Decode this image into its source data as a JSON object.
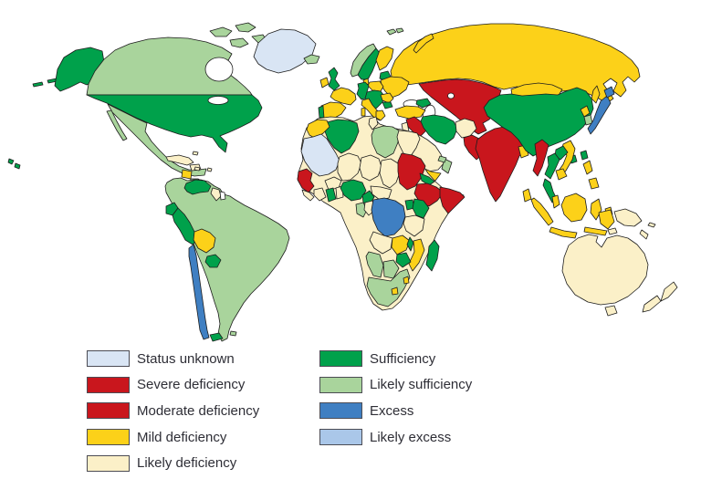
{
  "legend": {
    "columns": [
      {
        "items": [
          {
            "label": "Status unknown",
            "status": "status_unknown"
          },
          {
            "label": "Severe deficiency",
            "status": "severe_deficiency"
          },
          {
            "label": "Moderate deficiency",
            "status": "moderate_deficiency"
          },
          {
            "label": "Mild deficiency",
            "status": "mild_deficiency"
          },
          {
            "label": "Likely deficiency",
            "status": "likely_deficiency"
          }
        ]
      },
      {
        "items": [
          {
            "label": "Sufficiency",
            "status": "sufficiency"
          },
          {
            "label": "Likely sufficiency",
            "status": "likely_sufficiency"
          },
          {
            "label": "Excess",
            "status": "excess"
          },
          {
            "label": "Likely excess",
            "status": "likely_excess"
          }
        ]
      }
    ]
  },
  "status_colors": {
    "status_unknown": "#d9e5f4",
    "severe_deficiency": "#c9161d",
    "moderate_deficiency": "#c9161d",
    "mild_deficiency": "#fcd119",
    "likely_deficiency": "#fbf0c8",
    "sufficiency": "#00a14b",
    "likely_sufficiency": "#a9d49c",
    "excess": "#3f7fc2",
    "likely_excess": "#aac7e9",
    "no_data": "#ffffff"
  },
  "map": {
    "water_color": "#ffffff",
    "outline_color": "#1d1d1d",
    "regions": {
      "hawaii": "sufficiency",
      "aleutians": "sufficiency",
      "alaska": "sufficiency",
      "canada": "likely_sufficiency",
      "arctic_islands": "likely_sufficiency",
      "greenland": "status_unknown",
      "iceland": "likely_sufficiency",
      "usa": "sufficiency",
      "mexico": "likely_sufficiency",
      "guatemala": "mild_deficiency",
      "central_america": "likely_sufficiency",
      "cuba": "likely_deficiency",
      "hispaniola": "likely_deficiency",
      "bahamas": "likely_deficiency",
      "antilles": "likely_deficiency",
      "trinidad": "likely_deficiency",
      "south_america_base": "likely_sufficiency",
      "venezuela": "sufficiency",
      "guyana": "likely_deficiency",
      "suriname": "no_data",
      "ecuador": "sufficiency",
      "peru": "sufficiency",
      "bolivia": "mild_deficiency",
      "paraguay": "sufficiency",
      "chile": "excess",
      "tierra_del_fuego": "sufficiency",
      "falkland": "likely_sufficiency",
      "ireland": "mild_deficiency",
      "uk": "sufficiency",
      "norway": "likely_sufficiency",
      "sweden": "sufficiency",
      "finland": "mild_deficiency",
      "denmark": "mild_deficiency",
      "baltics": "sufficiency",
      "poland": "mild_deficiency",
      "germany": "sufficiency",
      "france": "mild_deficiency",
      "spain": "mild_deficiency",
      "portugal": "sufficiency",
      "italy": "mild_deficiency",
      "central_europe": "sufficiency",
      "greece": "mild_deficiency",
      "romania": "mild_deficiency",
      "bulgaria": "sufficiency",
      "east_europe": "mild_deficiency",
      "russia": "mild_deficiency",
      "svalbard": "likely_sufficiency",
      "caucasus": "sufficiency",
      "central_asia": "severe_deficiency",
      "turkey": "mild_deficiency",
      "syria_iraq": "severe_deficiency",
      "levant": "likely_deficiency",
      "iran": "sufficiency",
      "afghanistan": "likely_deficiency",
      "pakistan": "severe_deficiency",
      "india": "severe_deficiency",
      "bangladesh": "mild_deficiency",
      "sri_lanka": "mild_deficiency",
      "saudi_arabia": "likely_deficiency",
      "yemen": "mild_deficiency",
      "oman": "likely_sufficiency",
      "uae": "likely_sufficiency",
      "china": "sufficiency",
      "mongolia": "mild_deficiency",
      "north_korea": "mild_deficiency",
      "south_korea": "likely_sufficiency",
      "japan": "excess",
      "taiwan": "sufficiency",
      "hainan": "sufficiency",
      "myanmar": "severe_deficiency",
      "thailand": "sufficiency",
      "laos": "sufficiency",
      "vietnam": "mild_deficiency",
      "cambodia": "mild_deficiency",
      "malaysia": "mild_deficiency",
      "indonesia": "mild_deficiency",
      "timor": "likely_deficiency",
      "philippines": "mild_deficiency",
      "papua_new_guinea": "likely_deficiency",
      "solomon_islands": "likely_deficiency",
      "new_caledonia": "likely_deficiency",
      "australia": "likely_deficiency",
      "tasmania": "likely_deficiency",
      "new_zealand": "likely_deficiency",
      "africa_base": "likely_deficiency",
      "algeria": "sufficiency",
      "morocco": "mild_deficiency",
      "western_sahara_mauritania": "status_unknown",
      "tunisia": "likely_deficiency",
      "libya": "likely_sufficiency",
      "egypt": "likely_deficiency",
      "mali": "likely_deficiency",
      "burkina_faso": "likely_deficiency",
      "niger": "likely_deficiency",
      "chad": "likely_deficiency",
      "sudan": "severe_deficiency",
      "eritrea": "sufficiency",
      "ethiopia": "severe_deficiency",
      "somalia": "severe_deficiency",
      "senegal_guinea": "severe_deficiency",
      "sierra_leone_liberia": "likely_deficiency",
      "cote_divoire": "likely_deficiency",
      "ghana": "sufficiency",
      "togo_benin": "likely_deficiency",
      "nigeria": "sufficiency",
      "cameroon": "sufficiency",
      "central_african_republic": "likely_deficiency",
      "gabon": "likely_sufficiency",
      "congo": "likely_deficiency",
      "dr_congo": "excess",
      "uganda": "sufficiency",
      "kenya": "sufficiency",
      "tanzania": "likely_deficiency",
      "angola": "likely_deficiency",
      "zambia": "mild_deficiency",
      "malawi": "sufficiency",
      "mozambique": "mild_deficiency",
      "zimbabwe": "sufficiency",
      "namibia": "likely_sufficiency",
      "botswana": "likely_sufficiency",
      "south_africa": "likely_sufficiency",
      "lesotho": "mild_deficiency",
      "swaziland": "mild_deficiency",
      "madagascar": "sufficiency"
    }
  }
}
